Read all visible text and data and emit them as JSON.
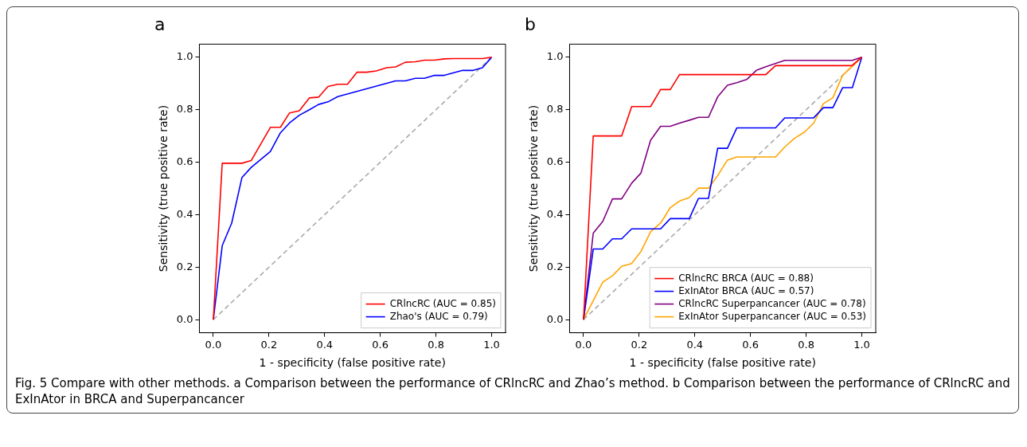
{
  "chart_data": [
    {
      "type": "line",
      "title": "a",
      "xlabel": "1 - specificity (false positive rate)",
      "ylabel": "Sensitivity (true positive rate)",
      "xlim": [
        -0.05,
        1.05
      ],
      "ylim": [
        -0.05,
        1.05
      ],
      "xticks": [
        {
          "value": 0,
          "label": "0.0"
        },
        {
          "value": 0.2,
          "label": "0.2"
        },
        {
          "value": 0.4,
          "label": "0.4"
        },
        {
          "value": 0.6,
          "label": "0.6"
        },
        {
          "value": 0.8,
          "label": "0.8"
        },
        {
          "value": 1,
          "label": "1.0"
        }
      ],
      "yticks": [
        {
          "value": 0,
          "label": "0.0"
        },
        {
          "value": 0.2,
          "label": "0.2"
        },
        {
          "value": 0.4,
          "label": "0.4"
        },
        {
          "value": 0.6,
          "label": "0.6"
        },
        {
          "value": 0.8,
          "label": "0.8"
        },
        {
          "value": 1,
          "label": "1.0"
        }
      ],
      "grid": false,
      "legend": "bottom right",
      "marker": "none",
      "series": [
        {
          "name": "CRlncRC (AUC = 0.85)",
          "color": "#ff0000",
          "line_style": "solid",
          "x": [
            0,
            0.032,
            0.103,
            0.136,
            0.205,
            0.241,
            0.274,
            0.309,
            0.345,
            0.378,
            0.412,
            0.447,
            0.482,
            0.516,
            0.551,
            0.586,
            0.622,
            0.655,
            0.69,
            0.726,
            0.759,
            0.795,
            0.83,
            0.863,
            0.967,
            1
          ],
          "values": [
            0,
            0.596,
            0.596,
            0.606,
            0.733,
            0.733,
            0.788,
            0.796,
            0.845,
            0.848,
            0.889,
            0.897,
            0.897,
            0.943,
            0.943,
            0.948,
            0.96,
            0.963,
            0.981,
            0.983,
            0.989,
            0.989,
            0.994,
            0.995,
            0.995,
            1
          ]
        },
        {
          "name": "Zhao's (AUC = 0.79)",
          "color": "#0000ff",
          "line_style": "solid",
          "x": [
            0,
            0.032,
            0.066,
            0.103,
            0.136,
            0.205,
            0.241,
            0.274,
            0.309,
            0.345,
            0.378,
            0.412,
            0.447,
            0.655,
            0.69,
            0.726,
            0.759,
            0.795,
            0.83,
            0.896,
            0.934,
            0.967,
            1
          ],
          "values": [
            0,
            0.282,
            0.368,
            0.542,
            0.58,
            0.641,
            0.712,
            0.75,
            0.779,
            0.8,
            0.82,
            0.83,
            0.85,
            0.91,
            0.91,
            0.92,
            0.92,
            0.931,
            0.931,
            0.95,
            0.95,
            0.96,
            1
          ]
        },
        {
          "color": "#aaaaaa",
          "line_style": "dashed",
          "x": [
            0,
            1
          ],
          "values": [
            0,
            1
          ]
        }
      ]
    },
    {
      "type": "line",
      "title": "b",
      "xlabel": "1 - specificity (false positive rate)",
      "ylabel": "Sensitivity (true positive rate)",
      "xlim": [
        -0.05,
        1.05
      ],
      "ylim": [
        -0.05,
        1.05
      ],
      "xticks": [
        {
          "value": 0,
          "label": "0.0"
        },
        {
          "value": 0.2,
          "label": "0.2"
        },
        {
          "value": 0.4,
          "label": "0.4"
        },
        {
          "value": 0.6,
          "label": "0.6"
        },
        {
          "value": 0.8,
          "label": "0.8"
        },
        {
          "value": 1,
          "label": "1.0"
        }
      ],
      "yticks": [
        {
          "value": 0,
          "label": "0.0"
        },
        {
          "value": 0.2,
          "label": "0.2"
        },
        {
          "value": 0.4,
          "label": "0.4"
        },
        {
          "value": 0.6,
          "label": "0.6"
        },
        {
          "value": 0.8,
          "label": "0.8"
        },
        {
          "value": 1,
          "label": "1.0"
        }
      ],
      "grid": false,
      "legend": "bottom right",
      "marker": "none",
      "annotations": [
        "Fig. 5 Compare with other methods. a Comparison between the performance of CRlncRC and Zhao’s method. b Comparison between the performance of CRlncRC and ExInAtor in BRCA and Superpancancer"
      ],
      "series": [
        {
          "name": "CRlncRC BRCA (AUC = 0.88)",
          "color": "#ff0000",
          "line_style": "solid",
          "x": [
            0,
            0.035,
            0.137,
            0.173,
            0.241,
            0.277,
            0.312,
            0.345,
            0.655,
            0.69,
            0.964,
            1
          ],
          "values": [
            0,
            0.7,
            0.7,
            0.812,
            0.812,
            0.877,
            0.877,
            0.934,
            0.934,
            0.968,
            0.968,
            1
          ]
        },
        {
          "name": "ExInAtor BRCA (AUC = 0.57)",
          "color": "#0000ff",
          "line_style": "solid",
          "x": [
            0,
            0.035,
            0.069,
            0.104,
            0.137,
            0.173,
            0.277,
            0.312,
            0.38,
            0.413,
            0.449,
            0.482,
            0.517,
            0.551,
            0.69,
            0.723,
            0.827,
            0.862,
            0.896,
            0.931,
            0.966,
            1
          ],
          "values": [
            0,
            0.269,
            0.269,
            0.308,
            0.308,
            0.346,
            0.346,
            0.385,
            0.385,
            0.462,
            0.462,
            0.653,
            0.653,
            0.731,
            0.731,
            0.769,
            0.769,
            0.808,
            0.808,
            0.884,
            0.884,
            1
          ]
        },
        {
          "name": "CRlncRC Superpancancer (AUC = 0.78)",
          "color": "#800080",
          "line_style": "solid",
          "x": [
            0,
            0.035,
            0.069,
            0.104,
            0.137,
            0.173,
            0.206,
            0.241,
            0.277,
            0.312,
            0.345,
            0.38,
            0.413,
            0.449,
            0.482,
            0.517,
            0.551,
            0.586,
            0.621,
            0.655,
            0.723,
            0.966,
            1
          ],
          "values": [
            0,
            0.33,
            0.374,
            0.46,
            0.46,
            0.52,
            0.558,
            0.684,
            0.737,
            0.737,
            0.749,
            0.76,
            0.771,
            0.771,
            0.849,
            0.893,
            0.903,
            0.915,
            0.95,
            0.964,
            0.988,
            0.988,
            1
          ]
        },
        {
          "name": "ExInAtor Superpancancer (AUC = 0.53)",
          "color": "#ffa500",
          "line_style": "solid",
          "x": [
            0,
            0.069,
            0.104,
            0.137,
            0.173,
            0.206,
            0.241,
            0.277,
            0.312,
            0.345,
            0.38,
            0.413,
            0.449,
            0.482,
            0.517,
            0.551,
            0.69,
            0.723,
            0.758,
            0.794,
            0.827,
            0.862,
            0.896,
            0.931,
            1
          ],
          "values": [
            0,
            0.143,
            0.167,
            0.203,
            0.214,
            0.259,
            0.335,
            0.368,
            0.427,
            0.452,
            0.465,
            0.501,
            0.501,
            0.549,
            0.608,
            0.62,
            0.62,
            0.658,
            0.691,
            0.715,
            0.749,
            0.823,
            0.846,
            0.931,
            1
          ]
        },
        {
          "color": "#aaaaaa",
          "line_style": "dashed",
          "x": [
            0,
            1
          ],
          "values": [
            0,
            1
          ]
        }
      ]
    }
  ]
}
